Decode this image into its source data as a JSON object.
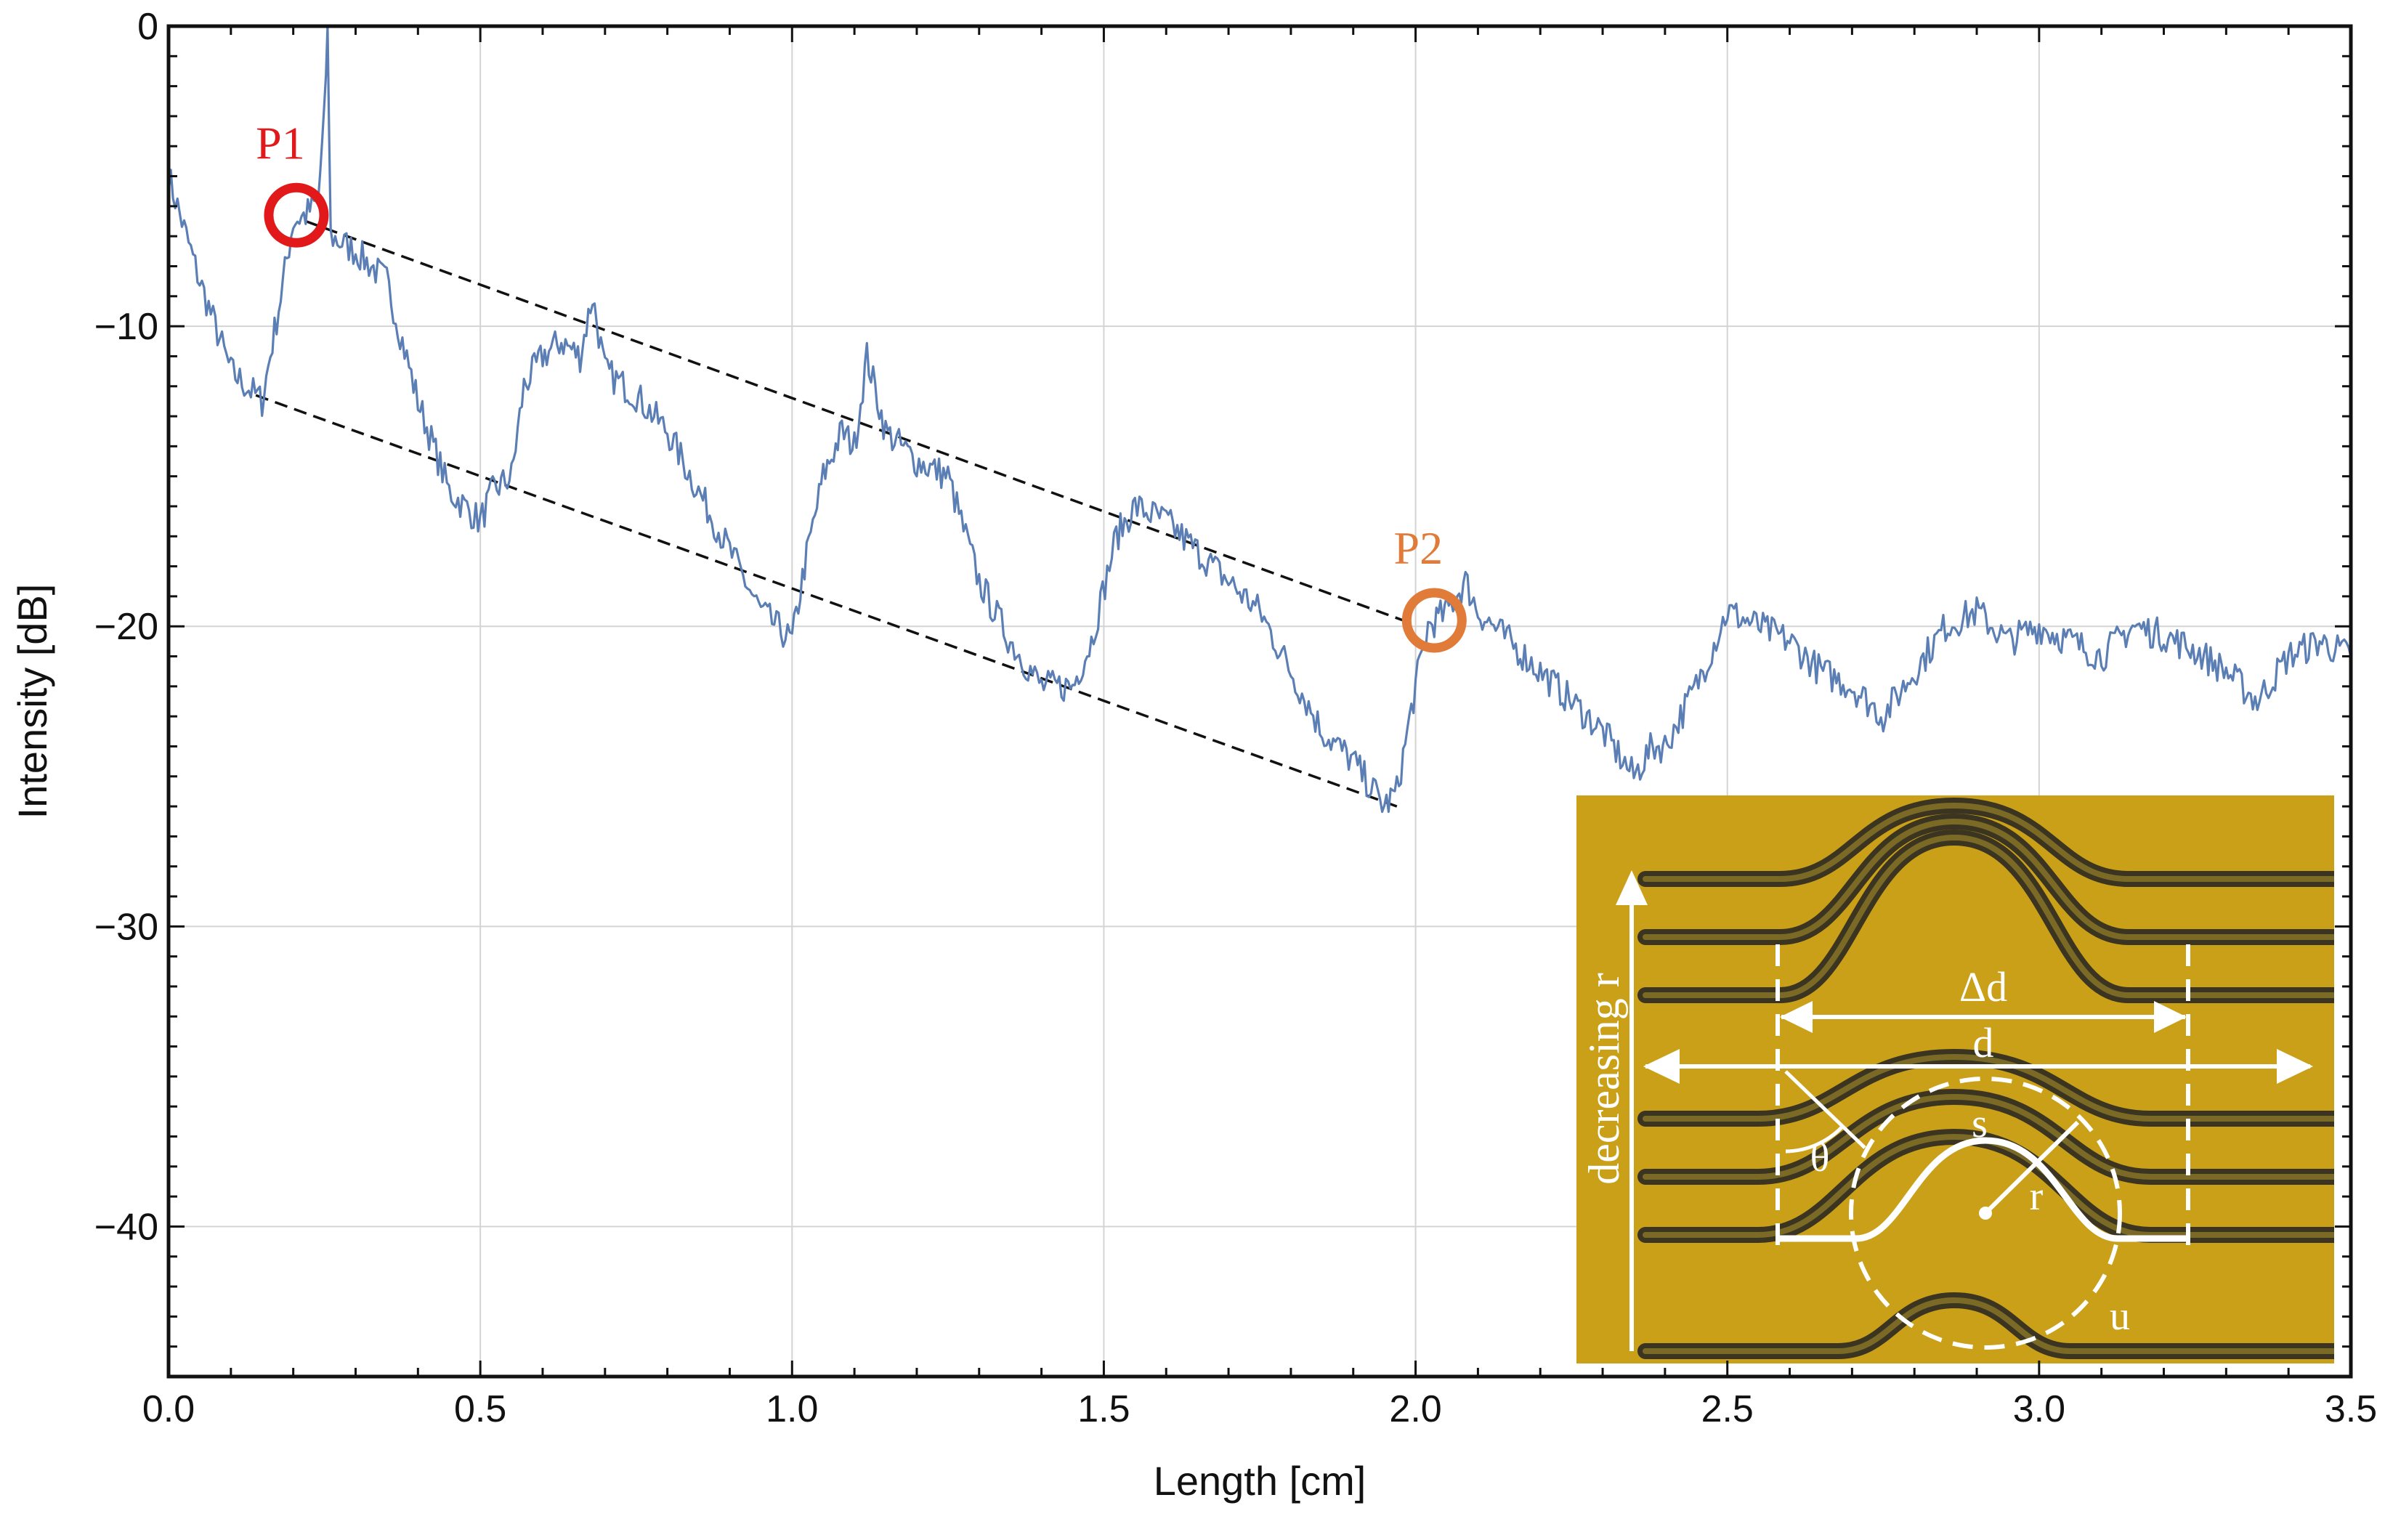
{
  "chart_data": {
    "type": "line",
    "title": "",
    "xlabel": "Length [cm]",
    "ylabel": "Intensity [dB]",
    "xlim": [
      0,
      3.5
    ],
    "ylim": [
      -45,
      0
    ],
    "xticks": [
      0.0,
      0.5,
      1.0,
      1.5,
      2.0,
      2.5,
      3.0,
      3.5
    ],
    "xtick_labels": [
      "0.0",
      "0.5",
      "1.0",
      "1.5",
      "2.0",
      "2.5",
      "3.0",
      "3.5"
    ],
    "yticks": [
      0,
      -10,
      -20,
      -30,
      -40
    ],
    "ytick_labels": [
      "0",
      "−10",
      "−20",
      "−30",
      "−40"
    ],
    "grid": true,
    "series": [
      {
        "color": "#5b7fb5",
        "x": [
          0.0,
          0.05,
          0.1,
          0.15,
          0.18,
          0.2,
          0.22,
          0.24,
          0.25,
          0.255,
          0.26,
          0.3,
          0.35,
          0.4,
          0.45,
          0.5,
          0.52,
          0.55,
          0.57,
          0.6,
          0.63,
          0.66,
          0.68,
          0.7,
          0.75,
          0.8,
          0.85,
          0.9,
          0.95,
          1.0,
          1.02,
          1.05,
          1.08,
          1.1,
          1.12,
          1.15,
          1.2,
          1.25,
          1.3,
          1.35,
          1.4,
          1.45,
          1.48,
          1.52,
          1.55,
          1.6,
          1.65,
          1.7,
          1.75,
          1.8,
          1.85,
          1.9,
          1.95,
          1.97,
          2.0,
          2.02,
          2.05,
          2.08,
          2.1,
          2.15,
          2.2,
          2.25,
          2.3,
          2.35,
          2.38,
          2.4,
          2.45,
          2.5,
          2.55,
          2.6,
          2.65,
          2.7,
          2.75,
          2.8,
          2.85,
          2.9,
          2.95,
          3.0,
          3.05,
          3.1,
          3.15,
          3.2,
          3.25,
          3.3,
          3.35,
          3.4,
          3.45,
          3.5
        ],
        "y": [
          -5,
          -8.5,
          -11.5,
          -12.5,
          -9,
          -6.5,
          -6.3,
          -5.8,
          -3,
          0,
          -7,
          -7.5,
          -8.5,
          -12.5,
          -15.5,
          -16.5,
          -15.5,
          -15,
          -12,
          -11,
          -10.5,
          -11,
          -9,
          -11.5,
          -12.3,
          -13.5,
          -15.5,
          -17.5,
          -19.5,
          -20.5,
          -18,
          -15,
          -13.5,
          -14,
          -11,
          -13.5,
          -14.5,
          -15,
          -18.5,
          -20.5,
          -22,
          -22,
          -20.5,
          -17,
          -16,
          -16.5,
          -17.5,
          -18.5,
          -19.5,
          -21.5,
          -23.5,
          -24.5,
          -26,
          -25.5,
          -22,
          -20,
          -19.5,
          -18.5,
          -19.5,
          -20.5,
          -21.5,
          -22.5,
          -23.5,
          -25,
          -24,
          -24,
          -22,
          -19.5,
          -20,
          -20.5,
          -21.5,
          -22,
          -23,
          -21.5,
          -20,
          -19.5,
          -20.5,
          -20,
          -20.5,
          -21,
          -20,
          -20.3,
          -20.8,
          -21.5,
          -22.5,
          -21,
          -20.5,
          -21
        ]
      }
    ],
    "reference_lines": [
      {
        "style": "dashed",
        "x": [
          0.22,
          1.98
        ],
        "y": [
          -6.5,
          -19.8
        ]
      },
      {
        "style": "dashed",
        "x": [
          0.14,
          1.97
        ],
        "y": [
          -12.3,
          -26.0
        ]
      }
    ],
    "annotations": [
      {
        "text": "P1",
        "color": "#e1191b",
        "x": 0.205,
        "y": -6.3
      },
      {
        "text": "P2",
        "color": "#e07b39",
        "x": 2.03,
        "y": -19.8
      }
    ],
    "inset": {
      "labels": {
        "decreasing": "decreasing r",
        "delta_d": "Δd",
        "d": "d",
        "s": "s",
        "r": "r",
        "theta": "θ",
        "u": "u"
      },
      "background_color": "#c9a018",
      "waveguide_color": "#3a3420",
      "overlay_color": "#ffffff"
    }
  }
}
